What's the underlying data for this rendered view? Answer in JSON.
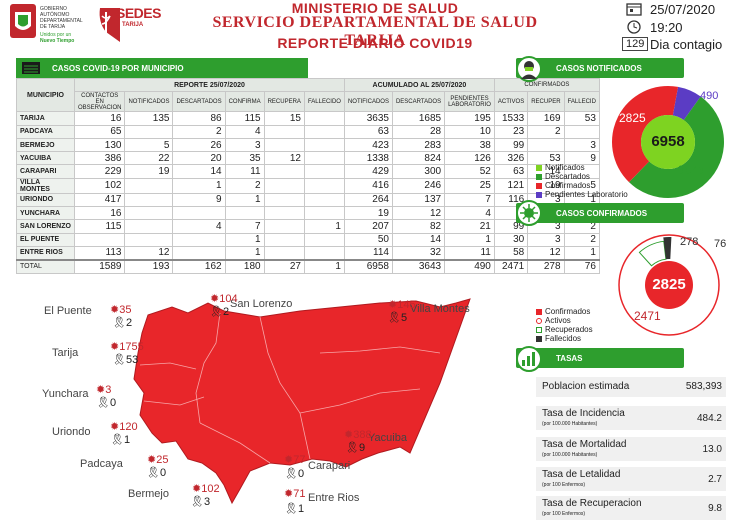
{
  "header": {
    "logo1_lines": [
      "GOBIERNO",
      "AUTÓNOMO",
      "DEPARTAMENTAL",
      "DE TARIJA"
    ],
    "logo1_tag": "Unidos por un",
    "logo1_tag2": "Nuevo Tiempo",
    "logo2_title": "SEDES",
    "logo2_sub": "TARIJA",
    "line1": "MINISTERIO DE SALUD",
    "line2": "SERVICIO DEPARTAMENTAL DE SALUD TARIJA",
    "line3": "REPORTE DIARIO COVID19",
    "date": "25/07/2020",
    "time": "19:20",
    "day_num": "129",
    "day_label": "Dia contagio",
    "colors": {
      "red": "#c1272d",
      "green": "#2e9e2e"
    }
  },
  "table_section": {
    "title": "CASOS COVID-19 POR MUNICIPIO",
    "group_report": "REPORTE 25/07/2020",
    "group_accum": "ACUMULADO AL 25/07/2020",
    "group_confirmed": "CONFIRMADOS",
    "col_municipio": "MUNICIPIO",
    "cols_report": [
      "CONTACTOS EN OBSERVACION",
      "NOTIFICADOS",
      "DESCARTADOS",
      "CONFIRMA",
      "RECUPERA",
      "FALLECIDO"
    ],
    "cols_accum": [
      "NOTIFICADOS",
      "DESCARTADOS",
      "PENDIENTES LABORATORIO"
    ],
    "cols_conf": [
      "ACTIVOS",
      "RECUPER",
      "FALLECID"
    ],
    "rows": [
      {
        "name": "TARIJA",
        "v": [
          "16",
          "135",
          "86",
          "115",
          "15",
          "",
          "3635",
          "1685",
          "195",
          "1533",
          "169",
          "53"
        ]
      },
      {
        "name": "PADCAYA",
        "v": [
          "65",
          "",
          "2",
          "4",
          "",
          "",
          "63",
          "28",
          "10",
          "23",
          "2",
          ""
        ]
      },
      {
        "name": "BERMEJO",
        "v": [
          "130",
          "5",
          "26",
          "3",
          "",
          "",
          "423",
          "283",
          "38",
          "99",
          "",
          "3"
        ]
      },
      {
        "name": "YACUIBA",
        "v": [
          "386",
          "22",
          "20",
          "35",
          "12",
          "",
          "1338",
          "824",
          "126",
          "326",
          "53",
          "9"
        ]
      },
      {
        "name": "CARAPARI",
        "v": [
          "229",
          "19",
          "14",
          "11",
          "",
          "",
          "429",
          "300",
          "52",
          "63",
          "14",
          ""
        ]
      },
      {
        "name": "VILLA MONTES",
        "v": [
          "102",
          "",
          "1",
          "2",
          "",
          "",
          "416",
          "246",
          "25",
          "121",
          "19",
          "5"
        ]
      },
      {
        "name": "URIONDO",
        "v": [
          "417",
          "",
          "9",
          "1",
          "",
          "",
          "264",
          "137",
          "7",
          "116",
          "3",
          "1"
        ]
      },
      {
        "name": "YUNCHARA",
        "v": [
          "16",
          "",
          "",
          "",
          "",
          "",
          "19",
          "12",
          "4",
          "3",
          "",
          ""
        ]
      },
      {
        "name": "SAN LORENZO",
        "v": [
          "115",
          "",
          "4",
          "7",
          "",
          "1",
          "207",
          "82",
          "21",
          "99",
          "3",
          "2"
        ]
      },
      {
        "name": "EL PUENTE",
        "v": [
          "",
          "",
          "",
          "1",
          "",
          "",
          "50",
          "14",
          "1",
          "30",
          "3",
          "2"
        ]
      },
      {
        "name": "ENTRE RIOS",
        "v": [
          "113",
          "12",
          "",
          "1",
          "",
          "",
          "114",
          "32",
          "11",
          "58",
          "12",
          "1"
        ]
      }
    ],
    "total": {
      "name": "TOTAL",
      "v": [
        "1589",
        "193",
        "162",
        "180",
        "27",
        "1",
        "6958",
        "3643",
        "490",
        "2471",
        "278",
        "76"
      ]
    }
  },
  "notificados": {
    "title": "CASOS NOTIFICADOS",
    "total": "6958",
    "values": {
      "confirmados": "2825",
      "descartados": "3643",
      "pendientes": "490"
    },
    "legend": [
      "Notificados",
      "Descartados",
      "Confirmados",
      "Pendientes Laboratorio"
    ],
    "legend_colors": [
      "#7ed321",
      "#2e9e2e",
      "#e8262a",
      "#5b3cc4"
    ]
  },
  "confirmados": {
    "title": "CASOS CONFIRMADOS",
    "total": "2825",
    "values": {
      "activos": "2471",
      "recuperados": "278",
      "fallecidos": "76"
    },
    "legend": [
      "Confirmados",
      "Activos",
      "Recuperados",
      "Fallecidos"
    ]
  },
  "tasas": {
    "title": "TASAS",
    "rows": [
      {
        "label": "Poblacion estimada",
        "sub": "",
        "value": "583,393"
      },
      {
        "label": "Tasa de Incidencia",
        "sub": "(por 100.000 Habitantes)",
        "value": "484.2"
      },
      {
        "label": "Tasa de Mortalidad",
        "sub": "(por 100.000 Habitantes)",
        "value": "13.0"
      },
      {
        "label": "Tasa de Letalidad",
        "sub": "(por 100 Enfermos)",
        "value": "2.7"
      },
      {
        "label": "Tasa de Recuperacion",
        "sub": "(por 100 Enfermos)",
        "value": "9.8"
      }
    ]
  },
  "map": {
    "places": [
      {
        "name": "El Puente",
        "cases": "35",
        "deaths": "2"
      },
      {
        "name": "San Lorenzo",
        "cases": "104",
        "deaths": "2"
      },
      {
        "name": "Villa Montes",
        "cases": "145",
        "deaths": "5"
      },
      {
        "name": "Tarija",
        "cases": "1755",
        "deaths": "53"
      },
      {
        "name": "Yunchara",
        "cases": "3",
        "deaths": "0"
      },
      {
        "name": "Uriondo",
        "cases": "120",
        "deaths": "1"
      },
      {
        "name": "Yacuiba",
        "cases": "388",
        "deaths": "9"
      },
      {
        "name": "Padcaya",
        "cases": "25",
        "deaths": "0"
      },
      {
        "name": "Carapari",
        "cases": "77",
        "deaths": "0"
      },
      {
        "name": "Bermejo",
        "cases": "102",
        "deaths": "3"
      },
      {
        "name": "Entre Rios",
        "cases": "71",
        "deaths": "1"
      }
    ]
  }
}
